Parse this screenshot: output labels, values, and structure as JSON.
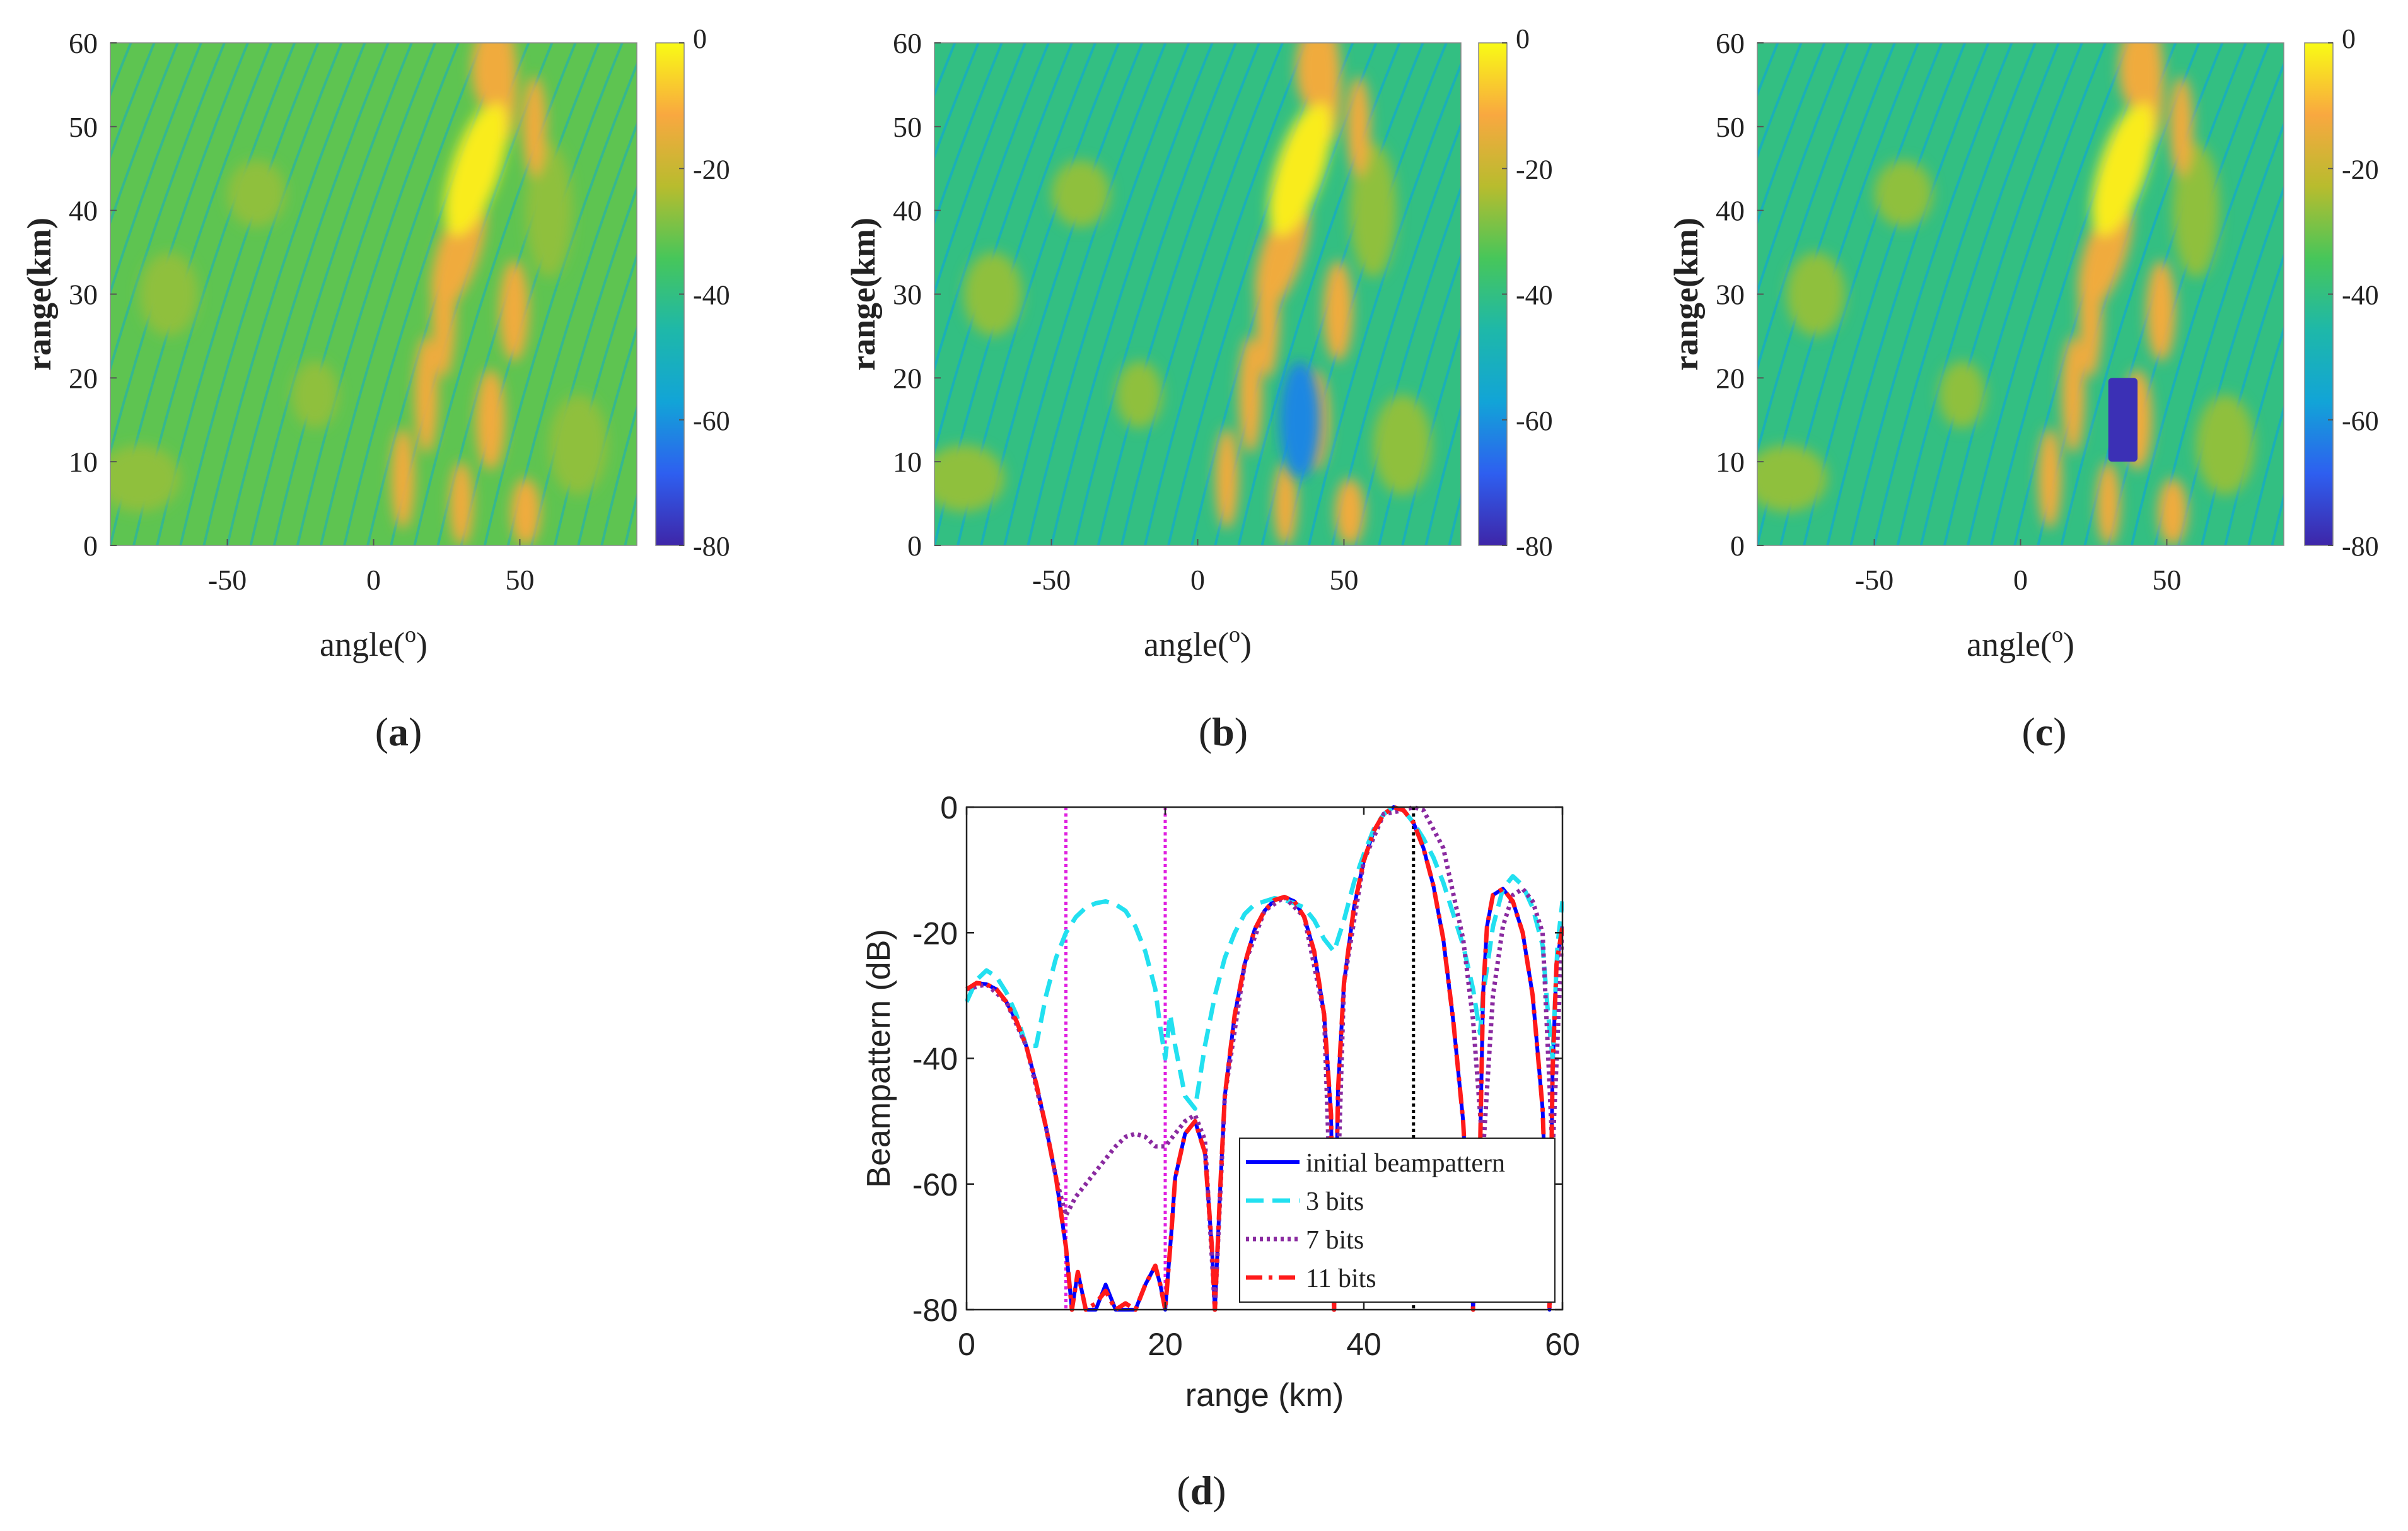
{
  "figure": {
    "panels": [
      {
        "id": "a",
        "caption": "a",
        "paren_open": "(",
        "paren_close": ")"
      },
      {
        "id": "b",
        "caption": "b",
        "paren_open": "(",
        "paren_close": ")"
      },
      {
        "id": "c",
        "caption": "c",
        "paren_open": "(",
        "paren_close": ")"
      },
      {
        "id": "d",
        "caption": "d",
        "paren_open": "(",
        "paren_close": ")"
      }
    ]
  },
  "chart_data": [
    {
      "id": "a",
      "type": "heatmap",
      "xlabel": "angle(",
      "xlabel_sup": "o",
      "xlabel_close": ")",
      "ylabel": "range(km)",
      "xlim": [
        -90,
        90
      ],
      "ylim": [
        0,
        60
      ],
      "xticks": [
        -50,
        0,
        50
      ],
      "yticks": [
        0,
        10,
        20,
        30,
        40,
        50,
        60
      ],
      "colorbar": {
        "min": -80,
        "max": 0,
        "ticks": [
          0,
          -20,
          -40,
          -60,
          -80
        ]
      },
      "colormap": [
        "#3e26a8",
        "#2e5ff0",
        "#12a4d7",
        "#1eb8a9",
        "#47c65a",
        "#b8bc2e",
        "#f9a840",
        "#f9fb15"
      ],
      "mainlobe": {
        "angle": 35,
        "range": 45
      },
      "null_region": null,
      "background_level": -32
    },
    {
      "id": "b",
      "type": "heatmap",
      "xlabel": "angle(",
      "xlabel_sup": "o",
      "xlabel_close": ")",
      "ylabel": "range(km)",
      "xlim": [
        -90,
        90
      ],
      "ylim": [
        0,
        60
      ],
      "xticks": [
        -50,
        0,
        50
      ],
      "yticks": [
        0,
        10,
        20,
        30,
        40,
        50,
        60
      ],
      "colorbar": {
        "min": -80,
        "max": 0,
        "ticks": [
          0,
          -20,
          -40,
          -60,
          -80
        ]
      },
      "colormap": [
        "#3e26a8",
        "#2e5ff0",
        "#12a4d7",
        "#1eb8a9",
        "#47c65a",
        "#b8bc2e",
        "#f9a840",
        "#f9fb15"
      ],
      "mainlobe": {
        "angle": 35,
        "range": 45
      },
      "null_region": {
        "angle_min": 28,
        "angle_max": 42,
        "range_min": 8,
        "range_max": 22,
        "level": -62
      },
      "background_level": -40
    },
    {
      "id": "c",
      "type": "heatmap",
      "xlabel": "angle(",
      "xlabel_sup": "o",
      "xlabel_close": ")",
      "ylabel": "range(km)",
      "xlim": [
        -90,
        90
      ],
      "ylim": [
        0,
        60
      ],
      "xticks": [
        -50,
        0,
        50
      ],
      "yticks": [
        0,
        10,
        20,
        30,
        40,
        50,
        60
      ],
      "colorbar": {
        "min": -80,
        "max": 0,
        "ticks": [
          0,
          -20,
          -40,
          -60,
          -80
        ]
      },
      "colormap": [
        "#3e26a8",
        "#2e5ff0",
        "#12a4d7",
        "#1eb8a9",
        "#47c65a",
        "#b8bc2e",
        "#f9a840",
        "#f9fb15"
      ],
      "mainlobe": {
        "angle": 35,
        "range": 45
      },
      "null_region": {
        "angle_min": 30,
        "angle_max": 40,
        "range_min": 10,
        "range_max": 20,
        "level": -78
      },
      "background_level": -40
    },
    {
      "id": "d",
      "type": "line",
      "xlabel": "range (km)",
      "ylabel": "Beampattern (dB)",
      "xlim": [
        0,
        60
      ],
      "ylim": [
        -80,
        0
      ],
      "xticks": [
        0,
        20,
        40,
        60
      ],
      "yticks": [
        0,
        -20,
        -40,
        -60,
        -80
      ],
      "vlines": [
        {
          "x": 10,
          "color": "#e020e0",
          "style": "dotted"
        },
        {
          "x": 20,
          "color": "#e020e0",
          "style": "dotted"
        },
        {
          "x": 45,
          "color": "#000000",
          "style": "dotted"
        }
      ],
      "legend": {
        "position": "lower-right"
      },
      "series": [
        {
          "name": "initial beampattern",
          "color": "#0000ff",
          "dash": "solid",
          "x": [
            0,
            1,
            2,
            3,
            4,
            5,
            6,
            7,
            8,
            9,
            10,
            10.6,
            11.2,
            12,
            13,
            14,
            15,
            16,
            17,
            18,
            19,
            19.5,
            20,
            20.6,
            21,
            22,
            23,
            24,
            24.7,
            25,
            25.5,
            26,
            27,
            28,
            29,
            30,
            31,
            32,
            33,
            34,
            35,
            36,
            36.7,
            37,
            37.4,
            38,
            39,
            40,
            41,
            42,
            43,
            44,
            45,
            46,
            47,
            48,
            49,
            50,
            51,
            51.7,
            52,
            52.4,
            53,
            54,
            55,
            56,
            57,
            58,
            58.7,
            59,
            59.4,
            60
          ],
          "y": [
            -29,
            -28,
            -28.2,
            -29,
            -31,
            -34,
            -38,
            -44,
            -51,
            -59,
            -70,
            -80,
            -74,
            -80,
            -80,
            -76,
            -80,
            -80,
            -80,
            -76,
            -73,
            -76,
            -80,
            -68,
            -59,
            -52,
            -50,
            -55,
            -70,
            -80,
            -62,
            -46,
            -33,
            -25,
            -19.5,
            -16.5,
            -14.8,
            -14.3,
            -15,
            -17.5,
            -23,
            -33,
            -49,
            -80,
            -45,
            -28,
            -16,
            -8.5,
            -3.8,
            -1.1,
            0,
            -0.5,
            -2.5,
            -6.5,
            -12.5,
            -21,
            -34,
            -50,
            -80,
            -55,
            -30,
            -19,
            -14,
            -13,
            -15,
            -20,
            -30,
            -48,
            -80,
            -42,
            -25,
            -19
          ]
        },
        {
          "name": "3 bits",
          "color": "#22e0f0",
          "dash": "dashed",
          "x": [
            0,
            1,
            2,
            3,
            4,
            5,
            6,
            7,
            8,
            9,
            10,
            11,
            12,
            13,
            14,
            15,
            16,
            17,
            18,
            19,
            19.5,
            20,
            20.5,
            21,
            22,
            23,
            24,
            25,
            26,
            27,
            28,
            29,
            30,
            31,
            32,
            33,
            34,
            35,
            36,
            37,
            38,
            39,
            40,
            41,
            42,
            43,
            44,
            45,
            46,
            47,
            48,
            49,
            50,
            51,
            51.7,
            52,
            53,
            54,
            55,
            56,
            57,
            58,
            58.5,
            59,
            59.5,
            60
          ],
          "y": [
            -31,
            -27.5,
            -26,
            -27,
            -29.5,
            -33,
            -38,
            -38,
            -30,
            -24,
            -20,
            -17.5,
            -16,
            -15.3,
            -15,
            -15.5,
            -16.5,
            -19,
            -23,
            -29,
            -35,
            -40,
            -33,
            -38,
            -46,
            -48,
            -38,
            -30,
            -24,
            -20,
            -17,
            -15.5,
            -15,
            -14.5,
            -14.8,
            -15.3,
            -16,
            -18,
            -21,
            -23,
            -18,
            -12,
            -7.5,
            -3.5,
            -1.1,
            0,
            -0.5,
            -2.5,
            -5,
            -8,
            -12,
            -17,
            -22,
            -29,
            -36,
            -30,
            -19,
            -13,
            -11,
            -12.5,
            -16,
            -22,
            -32,
            -40,
            -22,
            -15
          ]
        },
        {
          "name": "7 bits",
          "color": "#8a2aa0",
          "dash": "dotted",
          "x": [
            0,
            2,
            4,
            6,
            8,
            9,
            10,
            11,
            12,
            13,
            14,
            15,
            16,
            17,
            18,
            19,
            20,
            21,
            22,
            23,
            24,
            25,
            26,
            28,
            30,
            32,
            34,
            36,
            37,
            38,
            40,
            42,
            44,
            45,
            46,
            48,
            50,
            51,
            52,
            53,
            54,
            55,
            56,
            57,
            58,
            59,
            60
          ],
          "y": [
            -29,
            -28.2,
            -31,
            -38,
            -51,
            -59,
            -65,
            -62,
            -60,
            -58,
            -56,
            -54,
            -52.5,
            -52,
            -52.5,
            -54,
            -54,
            -52,
            -50,
            -49,
            -53,
            -80,
            -46,
            -25,
            -16.5,
            -14.3,
            -17.5,
            -33,
            -80,
            -28,
            -8.5,
            -1.1,
            -0.5,
            0,
            -0.5,
            -6.5,
            -21,
            -34,
            -55,
            -30,
            -19,
            -14,
            -13,
            -15,
            -20,
            -55,
            -19
          ]
        },
        {
          "name": "11 bits",
          "color": "#ff1a1a",
          "dash": "dashdot",
          "x": [
            0,
            1,
            2,
            3,
            4,
            5,
            6,
            7,
            8,
            9,
            10,
            10.6,
            11.2,
            12,
            13,
            14,
            15,
            16,
            17,
            18,
            19,
            19.5,
            20,
            20.6,
            21,
            22,
            23,
            24,
            24.7,
            25,
            25.5,
            26,
            27,
            28,
            29,
            30,
            31,
            32,
            33,
            34,
            35,
            36,
            36.7,
            37,
            37.4,
            38,
            39,
            40,
            41,
            42,
            43,
            44,
            45,
            46,
            47,
            48,
            49,
            50,
            51,
            51.7,
            52,
            52.4,
            53,
            54,
            55,
            56,
            57,
            58,
            58.7,
            59,
            59.4,
            60
          ],
          "y": [
            -29,
            -28,
            -28.2,
            -29,
            -31,
            -34,
            -38,
            -44,
            -51,
            -59,
            -70,
            -80,
            -74,
            -80,
            -79,
            -77,
            -80,
            -79,
            -80,
            -76,
            -73,
            -76,
            -80,
            -68,
            -59,
            -52,
            -50,
            -55,
            -70,
            -80,
            -62,
            -46,
            -33,
            -25,
            -19.5,
            -16.5,
            -14.8,
            -14.3,
            -15,
            -17.5,
            -23,
            -33,
            -49,
            -80,
            -45,
            -28,
            -16,
            -8.5,
            -3.8,
            -1.1,
            0,
            -0.5,
            -2.5,
            -6.5,
            -12.5,
            -21,
            -34,
            -50,
            -80,
            -55,
            -30,
            -19,
            -14,
            -13,
            -15,
            -20,
            -30,
            -48,
            -80,
            -42,
            -25,
            -19
          ]
        }
      ]
    }
  ]
}
